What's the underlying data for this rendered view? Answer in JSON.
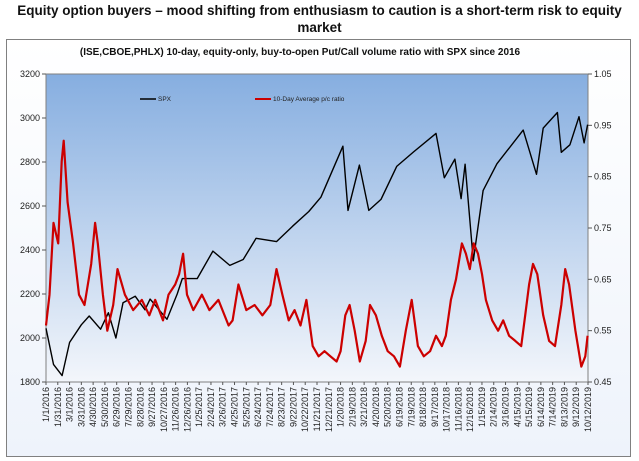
{
  "title": {
    "line1": "Equity option buyers – mood shifting from enthusiasm to caution is a short-term risk to equity",
    "line2": "market"
  },
  "chart_data": {
    "type": "line",
    "subtitle": "(ISE,CBOE,PHLX) 10-day, equity-only, buy-to-open Put/Call volume ratio with SPX since 2016",
    "y_left": {
      "ticks": [
        1800,
        2000,
        2200,
        2400,
        2600,
        2800,
        3000,
        3200
      ],
      "lim": [
        1800,
        3200
      ]
    },
    "y_right": {
      "ticks": [
        "0.45",
        "0.55",
        "0.65",
        "0.75",
        "0.85",
        "0.95",
        "1.05"
      ],
      "lim": [
        0.45,
        1.05
      ]
    },
    "x_labels": [
      "1/1/2016",
      "1/31/2016",
      "3/1/2016",
      "3/31/2016",
      "4/30/2016",
      "5/30/2016",
      "6/29/2016",
      "7/29/2016",
      "8/28/2016",
      "9/27/2016",
      "10/27/2016",
      "11/26/2016",
      "12/26/2016",
      "1/25/2017",
      "2/24/2017",
      "3/26/2017",
      "4/25/2017",
      "5/25/2017",
      "6/24/2017",
      "7/24/2017",
      "8/23/2017",
      "9/22/2017",
      "10/22/2017",
      "11/21/2017",
      "12/21/2017",
      "1/20/2018",
      "2/19/2018",
      "3/21/2018",
      "4/20/2018",
      "5/20/2018",
      "6/19/2018",
      "7/19/2018",
      "8/18/2018",
      "9/17/2018",
      "10/17/2018",
      "11/16/2018",
      "12/16/2018",
      "1/15/2019",
      "2/14/2019",
      "3/16/2019",
      "4/15/2019",
      "5/15/2019",
      "6/14/2019",
      "7/14/2019",
      "8/13/2019",
      "9/12/2019",
      "10/12/2019"
    ],
    "x_range": [
      "2016-01-01",
      "2019-10-12"
    ],
    "grid": false,
    "legend_position": "top-left",
    "series": [
      {
        "name": "SPX",
        "axis": "left",
        "color": "#000000",
        "points": [
          [
            "2016-01-01",
            2044
          ],
          [
            "2016-01-20",
            1880
          ],
          [
            "2016-02-11",
            1829
          ],
          [
            "2016-03-01",
            1980
          ],
          [
            "2016-03-31",
            2060
          ],
          [
            "2016-04-20",
            2100
          ],
          [
            "2016-05-19",
            2040
          ],
          [
            "2016-06-08",
            2115
          ],
          [
            "2016-06-27",
            2000
          ],
          [
            "2016-07-15",
            2160
          ],
          [
            "2016-08-15",
            2190
          ],
          [
            "2016-09-09",
            2128
          ],
          [
            "2016-09-22",
            2177
          ],
          [
            "2016-11-04",
            2085
          ],
          [
            "2016-11-30",
            2200
          ],
          [
            "2016-12-13",
            2270
          ],
          [
            "2017-01-20",
            2270
          ],
          [
            "2017-03-01",
            2395
          ],
          [
            "2017-04-13",
            2330
          ],
          [
            "2017-05-17",
            2357
          ],
          [
            "2017-06-19",
            2453
          ],
          [
            "2017-08-10",
            2438
          ],
          [
            "2017-09-20",
            2508
          ],
          [
            "2017-10-31",
            2575
          ],
          [
            "2017-12-01",
            2640
          ],
          [
            "2018-01-26",
            2872
          ],
          [
            "2018-02-08",
            2580
          ],
          [
            "2018-03-09",
            2786
          ],
          [
            "2018-04-02",
            2580
          ],
          [
            "2018-05-03",
            2630
          ],
          [
            "2018-06-12",
            2780
          ],
          [
            "2018-07-25",
            2846
          ],
          [
            "2018-09-20",
            2930
          ],
          [
            "2018-10-11",
            2728
          ],
          [
            "2018-11-07",
            2813
          ],
          [
            "2018-11-23",
            2633
          ],
          [
            "2018-12-03",
            2790
          ],
          [
            "2018-12-24",
            2351
          ],
          [
            "2019-01-18",
            2670
          ],
          [
            "2019-02-22",
            2792
          ],
          [
            "2019-04-30",
            2945
          ],
          [
            "2019-06-03",
            2744
          ],
          [
            "2019-06-20",
            2954
          ],
          [
            "2019-07-26",
            3025
          ],
          [
            "2019-08-05",
            2844
          ],
          [
            "2019-08-27",
            2878
          ],
          [
            "2019-09-19",
            3006
          ],
          [
            "2019-10-02",
            2887
          ],
          [
            "2019-10-11",
            2970
          ]
        ]
      },
      {
        "name": "10-Day Average p/c ratio",
        "axis": "right",
        "color": "#cc0000",
        "points": [
          [
            "2016-01-01",
            0.56
          ],
          [
            "2016-01-10",
            0.62
          ],
          [
            "2016-01-20",
            0.76
          ],
          [
            "2016-02-01",
            0.72
          ],
          [
            "2016-02-10",
            0.88
          ],
          [
            "2016-02-15",
            0.92
          ],
          [
            "2016-02-25",
            0.8
          ],
          [
            "2016-03-10",
            0.72
          ],
          [
            "2016-03-25",
            0.62
          ],
          [
            "2016-04-08",
            0.6
          ],
          [
            "2016-04-25",
            0.68
          ],
          [
            "2016-05-05",
            0.76
          ],
          [
            "2016-05-12",
            0.72
          ],
          [
            "2016-05-25",
            0.62
          ],
          [
            "2016-06-05",
            0.55
          ],
          [
            "2016-06-20",
            0.6
          ],
          [
            "2016-07-01",
            0.67
          ],
          [
            "2016-07-20",
            0.62
          ],
          [
            "2016-08-10",
            0.59
          ],
          [
            "2016-09-01",
            0.61
          ],
          [
            "2016-09-20",
            0.58
          ],
          [
            "2016-10-05",
            0.61
          ],
          [
            "2016-10-25",
            0.57
          ],
          [
            "2016-11-08",
            0.62
          ],
          [
            "2016-11-25",
            0.64
          ],
          [
            "2016-12-05",
            0.66
          ],
          [
            "2016-12-15",
            0.7
          ],
          [
            "2016-12-25",
            0.62
          ],
          [
            "2017-01-10",
            0.59
          ],
          [
            "2017-02-01",
            0.62
          ],
          [
            "2017-02-20",
            0.59
          ],
          [
            "2017-03-15",
            0.61
          ],
          [
            "2017-04-10",
            0.56
          ],
          [
            "2017-04-20",
            0.57
          ],
          [
            "2017-05-05",
            0.64
          ],
          [
            "2017-05-25",
            0.59
          ],
          [
            "2017-06-15",
            0.6
          ],
          [
            "2017-07-05",
            0.58
          ],
          [
            "2017-07-25",
            0.6
          ],
          [
            "2017-08-10",
            0.67
          ],
          [
            "2017-08-25",
            0.62
          ],
          [
            "2017-09-10",
            0.57
          ],
          [
            "2017-09-25",
            0.59
          ],
          [
            "2017-10-10",
            0.56
          ],
          [
            "2017-10-25",
            0.61
          ],
          [
            "2017-11-10",
            0.52
          ],
          [
            "2017-11-25",
            0.5
          ],
          [
            "2017-12-10",
            0.51
          ],
          [
            "2017-12-25",
            0.5
          ],
          [
            "2018-01-10",
            0.49
          ],
          [
            "2018-01-20",
            0.51
          ],
          [
            "2018-02-01",
            0.58
          ],
          [
            "2018-02-12",
            0.6
          ],
          [
            "2018-02-25",
            0.55
          ],
          [
            "2018-03-10",
            0.49
          ],
          [
            "2018-03-25",
            0.53
          ],
          [
            "2018-04-05",
            0.6
          ],
          [
            "2018-04-20",
            0.58
          ],
          [
            "2018-05-05",
            0.54
          ],
          [
            "2018-05-20",
            0.51
          ],
          [
            "2018-06-05",
            0.5
          ],
          [
            "2018-06-20",
            0.48
          ],
          [
            "2018-07-05",
            0.55
          ],
          [
            "2018-07-20",
            0.61
          ],
          [
            "2018-08-05",
            0.52
          ],
          [
            "2018-08-20",
            0.5
          ],
          [
            "2018-09-05",
            0.51
          ],
          [
            "2018-09-20",
            0.54
          ],
          [
            "2018-10-05",
            0.52
          ],
          [
            "2018-10-15",
            0.54
          ],
          [
            "2018-10-28",
            0.61
          ],
          [
            "2018-11-10",
            0.65
          ],
          [
            "2018-11-25",
            0.72
          ],
          [
            "2018-12-05",
            0.7
          ],
          [
            "2018-12-15",
            0.67
          ],
          [
            "2018-12-25",
            0.72
          ],
          [
            "2019-01-05",
            0.7
          ],
          [
            "2019-01-15",
            0.66
          ],
          [
            "2019-01-25",
            0.61
          ],
          [
            "2019-02-10",
            0.57
          ],
          [
            "2019-02-25",
            0.55
          ],
          [
            "2019-03-10",
            0.57
          ],
          [
            "2019-03-25",
            0.54
          ],
          [
            "2019-04-10",
            0.53
          ],
          [
            "2019-04-25",
            0.52
          ],
          [
            "2019-05-05",
            0.58
          ],
          [
            "2019-05-15",
            0.64
          ],
          [
            "2019-05-25",
            0.68
          ],
          [
            "2019-06-05",
            0.66
          ],
          [
            "2019-06-20",
            0.58
          ],
          [
            "2019-07-05",
            0.53
          ],
          [
            "2019-07-20",
            0.52
          ],
          [
            "2019-08-05",
            0.6
          ],
          [
            "2019-08-15",
            0.67
          ],
          [
            "2019-08-25",
            0.64
          ],
          [
            "2019-09-10",
            0.55
          ],
          [
            "2019-09-25",
            0.48
          ],
          [
            "2019-10-05",
            0.5
          ],
          [
            "2019-10-11",
            0.54
          ]
        ]
      }
    ]
  }
}
